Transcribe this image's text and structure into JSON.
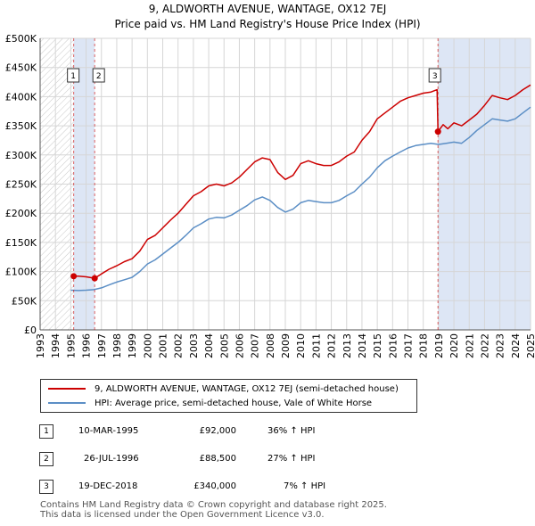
{
  "header": {
    "title_line1": "9, ALDWORTH AVENUE, WANTAGE, OX12 7EJ",
    "title_line2": "Price paid vs. HM Land Registry's House Price Index (HPI)"
  },
  "chart_data": {
    "type": "line",
    "title": "9, ALDWORTH AVENUE, WANTAGE, OX12 7EJ — Price paid vs. HM Land Registry's House Price Index (HPI)",
    "xlabel": "",
    "ylabel": "",
    "xlim": [
      1993,
      2025
    ],
    "ylim": [
      0,
      500000
    ],
    "grid": true,
    "ytick_values": [
      0,
      50000,
      100000,
      150000,
      200000,
      250000,
      300000,
      350000,
      400000,
      450000,
      500000
    ],
    "ytick_labels": [
      "£0",
      "£50K",
      "£100K",
      "£150K",
      "£200K",
      "£250K",
      "£300K",
      "£350K",
      "£400K",
      "£450K",
      "£500K"
    ],
    "xtick_values": [
      1993,
      1994,
      1995,
      1996,
      1997,
      1998,
      1999,
      2000,
      2001,
      2002,
      2003,
      2004,
      2005,
      2006,
      2007,
      2008,
      2009,
      2010,
      2011,
      2012,
      2013,
      2014,
      2015,
      2016,
      2017,
      2018,
      2019,
      2020,
      2021,
      2022,
      2023,
      2024,
      2025
    ],
    "xtick_labels": [
      "1993",
      "1994",
      "1995",
      "1996",
      "1997",
      "1998",
      "1999",
      "2000",
      "2001",
      "2002",
      "2003",
      "2004",
      "2005",
      "2006",
      "2007",
      "2008",
      "2009",
      "2010",
      "2011",
      "2012",
      "2013",
      "2014",
      "2015",
      "2016",
      "2017",
      "2018",
      "2019",
      "2020",
      "2021",
      "2022",
      "2023",
      "2024",
      "2025"
    ],
    "hatched_region": [
      1993,
      1995.19
    ],
    "shaded_regions": [
      [
        1995.19,
        1996.56
      ],
      [
        2018.96,
        2025
      ]
    ],
    "series": [
      {
        "name": "9, ALDWORTH AVENUE, WANTAGE, OX12 7EJ (semi-detached house)",
        "color": "#cc0000",
        "x": [
          1995.19,
          1995.5,
          1996.0,
          1996.56,
          1997.0,
          1997.5,
          1998.0,
          1998.5,
          1999.0,
          1999.5,
          2000.0,
          2000.5,
          2001.0,
          2001.5,
          2002.0,
          2002.5,
          2003.0,
          2003.5,
          2004.0,
          2004.5,
          2005.0,
          2005.5,
          2006.0,
          2006.5,
          2007.0,
          2007.5,
          2008.0,
          2008.5,
          2009.0,
          2009.5,
          2010.0,
          2010.5,
          2011.0,
          2011.5,
          2012.0,
          2012.5,
          2013.0,
          2013.5,
          2014.0,
          2014.5,
          2015.0,
          2015.5,
          2016.0,
          2016.5,
          2017.0,
          2017.5,
          2018.0,
          2018.5,
          2018.9,
          2018.96,
          2019.3,
          2019.6,
          2020.0,
          2020.5,
          2021.0,
          2021.5,
          2022.0,
          2022.5,
          2023.0,
          2023.5,
          2024.0,
          2024.5,
          2025.0
        ],
        "y": [
          92000,
          92000,
          91000,
          88500,
          96000,
          104000,
          110000,
          117000,
          122000,
          135000,
          155000,
          162000,
          175000,
          188000,
          200000,
          215000,
          230000,
          237000,
          247000,
          250000,
          247000,
          252000,
          262000,
          275000,
          288000,
          295000,
          292000,
          270000,
          258000,
          265000,
          285000,
          290000,
          285000,
          282000,
          282000,
          288000,
          298000,
          305000,
          325000,
          340000,
          362000,
          372000,
          382000,
          392000,
          398000,
          402000,
          406000,
          408000,
          412000,
          340000,
          352000,
          345000,
          355000,
          350000,
          360000,
          370000,
          385000,
          402000,
          398000,
          395000,
          402000,
          412000,
          420000
        ]
      },
      {
        "name": "HPI: Average price, semi-detached house, Vale of White Horse",
        "color": "#5b8ec5",
        "x": [
          1995.0,
          1995.5,
          1996.0,
          1996.5,
          1997.0,
          1997.5,
          1998.0,
          1998.5,
          1999.0,
          1999.5,
          2000.0,
          2000.5,
          2001.0,
          2001.5,
          2002.0,
          2002.5,
          2003.0,
          2003.5,
          2004.0,
          2004.5,
          2005.0,
          2005.5,
          2006.0,
          2006.5,
          2007.0,
          2007.5,
          2008.0,
          2008.5,
          2009.0,
          2009.5,
          2010.0,
          2010.5,
          2011.0,
          2011.5,
          2012.0,
          2012.5,
          2013.0,
          2013.5,
          2014.0,
          2014.5,
          2015.0,
          2015.5,
          2016.0,
          2016.5,
          2017.0,
          2017.5,
          2018.0,
          2018.5,
          2019.0,
          2019.5,
          2020.0,
          2020.5,
          2021.0,
          2021.5,
          2022.0,
          2022.5,
          2023.0,
          2023.5,
          2024.0,
          2024.5,
          2025.0
        ],
        "y": [
          68000,
          67500,
          68000,
          69000,
          72000,
          77000,
          82000,
          86000,
          90000,
          100000,
          113000,
          120000,
          130000,
          140000,
          150000,
          162000,
          175000,
          182000,
          190000,
          193000,
          192000,
          197000,
          205000,
          213000,
          223000,
          228000,
          222000,
          210000,
          202000,
          207000,
          218000,
          222000,
          220000,
          218000,
          218000,
          222000,
          230000,
          237000,
          250000,
          262000,
          278000,
          290000,
          298000,
          305000,
          312000,
          316000,
          318000,
          320000,
          318000,
          320000,
          322000,
          320000,
          330000,
          342000,
          352000,
          362000,
          360000,
          358000,
          362000,
          372000,
          382000
        ]
      }
    ],
    "sale_markers": [
      {
        "label": "1",
        "x": 1995.19,
        "y": 92000
      },
      {
        "label": "2",
        "x": 1996.56,
        "y": 88500
      },
      {
        "label": "3",
        "x": 2018.96,
        "y": 340000
      }
    ]
  },
  "legend": {
    "items": [
      {
        "label": "9, ALDWORTH AVENUE, WANTAGE, OX12 7EJ (semi-detached house)",
        "color": "#cc0000"
      },
      {
        "label": "HPI: Average price, semi-detached house, Vale of White Horse",
        "color": "#5b8ec5"
      }
    ]
  },
  "sales": [
    {
      "num": "1",
      "date": "10-MAR-1995",
      "price": "£92,000",
      "hpi": "36% ↑ HPI"
    },
    {
      "num": "2",
      "date": "26-JUL-1996",
      "price": "£88,500",
      "hpi": "27% ↑ HPI"
    },
    {
      "num": "3",
      "date": "19-DEC-2018",
      "price": "£340,000",
      "hpi": "7% ↑ HPI"
    }
  ],
  "footer": {
    "line1": "Contains HM Land Registry data © Crown copyright and database right 2025.",
    "line2": "This data is licensed under the Open Government Licence v3.0."
  }
}
